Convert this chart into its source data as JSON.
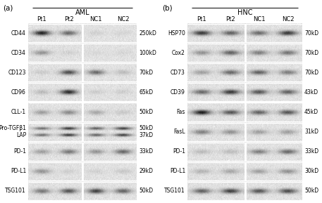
{
  "panel_a": {
    "label": "(a)",
    "group_label": "AML",
    "col_labels": [
      "Pt1",
      "Pt2",
      "NC1",
      "NC2"
    ],
    "rows": [
      {
        "protein": "CD44",
        "mw": "250kD",
        "bands": [
          0.92,
          0.58,
          0.08,
          0.07
        ],
        "double": false,
        "mw2": null
      },
      {
        "protein": "CD34",
        "mw": "100kD",
        "bands": [
          0.38,
          0.08,
          0.05,
          0.06
        ],
        "double": false,
        "mw2": null
      },
      {
        "protein": "CD123",
        "mw": "70kD",
        "bands": [
          0.12,
          0.72,
          0.58,
          0.18
        ],
        "double": false,
        "mw2": null
      },
      {
        "protein": "CD96",
        "mw": "65kD",
        "bands": [
          0.18,
          0.88,
          0.1,
          0.09
        ],
        "double": false,
        "mw2": null
      },
      {
        "protein": "CLL-1",
        "mw": "50kD",
        "bands": [
          0.32,
          0.42,
          0.28,
          0.13
        ],
        "double": false,
        "mw2": null
      },
      {
        "protein": "Pro-TGFβ1\nLAP",
        "mw": "50kD",
        "bands": [
          0.55,
          0.82,
          0.62,
          0.78
        ],
        "double": true,
        "mw2": "37kD"
      },
      {
        "protein": "PD-1",
        "mw": "33kD",
        "bands": [
          0.32,
          0.52,
          0.38,
          0.58
        ],
        "double": false,
        "mw2": null
      },
      {
        "protein": "PD-L1",
        "mw": "29kD",
        "bands": [
          0.38,
          0.09,
          0.08,
          0.13
        ],
        "double": false,
        "mw2": null
      },
      {
        "protein": "TSG101",
        "mw": "50kD",
        "bands": [
          0.52,
          0.68,
          0.78,
          0.62
        ],
        "double": false,
        "mw2": null
      }
    ]
  },
  "panel_b": {
    "label": "(b)",
    "group_label": "HNC",
    "col_labels": [
      "Pt1",
      "Pt2",
      "NC1",
      "NC2"
    ],
    "rows": [
      {
        "protein": "HSP70",
        "mw": "70kD",
        "bands": [
          0.82,
          0.62,
          0.58,
          0.82
        ],
        "double": false,
        "mw2": null
      },
      {
        "protein": "Cox2",
        "mw": "70kD",
        "bands": [
          0.38,
          0.62,
          0.48,
          0.52
        ],
        "double": false,
        "mw2": null
      },
      {
        "protein": "CD73",
        "mw": "70kD",
        "bands": [
          0.32,
          0.58,
          0.62,
          0.48
        ],
        "double": false,
        "mw2": null
      },
      {
        "protein": "CD39",
        "mw": "43kD",
        "bands": [
          0.58,
          0.82,
          0.68,
          0.62
        ],
        "double": false,
        "mw2": null
      },
      {
        "protein": "Fas",
        "mw": "45kD",
        "bands": [
          0.95,
          0.68,
          0.62,
          0.68
        ],
        "double": false,
        "mw2": null
      },
      {
        "protein": "FasL",
        "mw": "31kD",
        "bands": [
          0.48,
          0.38,
          0.32,
          0.32
        ],
        "double": false,
        "mw2": null
      },
      {
        "protein": "PD-1",
        "mw": "33kD",
        "bands": [
          0.18,
          0.18,
          0.48,
          0.58
        ],
        "double": false,
        "mw2": null
      },
      {
        "protein": "PD-L1",
        "mw": "30kD",
        "bands": [
          0.22,
          0.28,
          0.32,
          0.38
        ],
        "double": false,
        "mw2": null
      },
      {
        "protein": "TSG101",
        "mw": "50kD",
        "bands": [
          0.62,
          0.78,
          0.68,
          0.72
        ],
        "double": false,
        "mw2": null
      }
    ]
  },
  "figure_bg": "#ffffff"
}
